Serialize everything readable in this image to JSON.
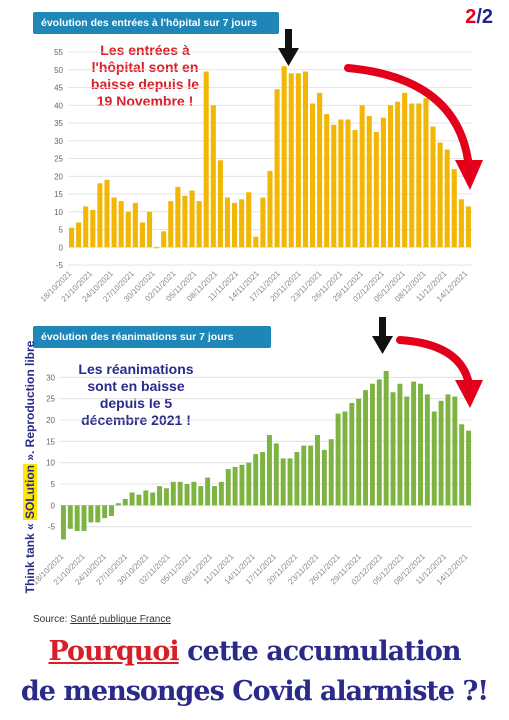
{
  "page_number": {
    "current": "2",
    "separator": "/",
    "total": "2"
  },
  "colors": {
    "header_bg": "#1f86b8",
    "bar1": "#f2b705",
    "bar2": "#7cb342",
    "arrow_red": "#e3001b",
    "arrow_black": "#111111",
    "text_red": "#d61f26",
    "text_blue": "#2a2a8a",
    "grid": "#dcdcdc"
  },
  "icons": [
    "down-arrow-icon",
    "curved-arrow-icon"
  ],
  "side_text": {
    "part1": "Think tank « ",
    "highlight": "SOLution",
    "part2": " ».  Reproduction libre"
  },
  "source": {
    "label": "Source: ",
    "link": "Santé publique France"
  },
  "bottom_text": {
    "line1_em": "Pourquoi",
    "line1_rest": " cette accumulation",
    "line2": "de mensonges Covid alarmiste ?!"
  },
  "chart_data": [
    {
      "type": "bar",
      "title": "évolution des entrées à l'hôpital sur 7 jours",
      "annotation": [
        "Les entrées à",
        "l'hôpital sont en",
        "baisse depuis le",
        "19 Novembre !"
      ],
      "ylim": [
        -5,
        55
      ],
      "yticks": [
        -5,
        0,
        5,
        10,
        15,
        20,
        25,
        30,
        35,
        40,
        45,
        50,
        55
      ],
      "grid": true,
      "xtick_labels": [
        "18/10/2021",
        "21/10/2021",
        "24/10/2021",
        "27/10/2021",
        "30/10/2021",
        "02/11/2021",
        "05/11/2021",
        "08/11/2021",
        "11/11/2021",
        "14/11/2021",
        "17/11/2021",
        "20/11/2021",
        "23/11/2021",
        "26/11/2021",
        "29/11/2021",
        "02/12/2021",
        "05/12/2021",
        "08/12/2021",
        "11/12/2021",
        "14/12/2021"
      ],
      "values": [
        5.5,
        7,
        11.5,
        10.5,
        18,
        19,
        14,
        13,
        10,
        12.5,
        7,
        10,
        -0.3,
        4.5,
        13,
        17,
        14.5,
        16,
        13,
        49.5,
        40,
        24.5,
        14,
        12.5,
        13.5,
        15.5,
        3,
        14,
        21.5,
        44.5,
        51,
        49,
        49,
        49.5,
        40.5,
        43.5,
        37.5,
        34.5,
        36,
        36,
        33,
        40,
        37,
        32.5,
        36.5,
        40,
        41,
        43.5,
        40.5,
        40.5,
        42,
        34,
        29.5,
        27.5,
        22,
        13.5,
        11.5
      ]
    },
    {
      "type": "bar",
      "title": "évolution des réanimations sur 7 jours",
      "annotation": [
        "Les réanimations",
        "sont en baisse",
        "depuis le 5",
        "décembre 2021 !"
      ],
      "ylim": [
        -10,
        35
      ],
      "yticks": [
        -5,
        0,
        5,
        10,
        15,
        20,
        25,
        30
      ],
      "grid": true,
      "xtick_labels": [
        "18/10/2021",
        "21/10/2021",
        "24/10/2021",
        "27/10/2021",
        "30/10/2021",
        "02/11/2021",
        "05/11/2021",
        "08/11/2021",
        "11/11/2021",
        "14/11/2021",
        "17/11/2021",
        "20/11/2021",
        "23/11/2021",
        "26/11/2021",
        "29/11/2021",
        "02/12/2021",
        "05/12/2021",
        "08/12/2021",
        "11/12/2021",
        "14/12/2021"
      ],
      "values": [
        -8,
        -5.5,
        -6,
        -6,
        -4,
        -4,
        -3,
        -2.5,
        0.5,
        1.5,
        3,
        2.5,
        3.5,
        3,
        4.5,
        4,
        5.5,
        5.5,
        5,
        5.5,
        4.5,
        6.5,
        4.5,
        5.5,
        8.5,
        9,
        9.5,
        10,
        12,
        12.5,
        16.5,
        14.5,
        11,
        11,
        12.5,
        14,
        14,
        16.5,
        13,
        15.5,
        21.5,
        22,
        24,
        25,
        27,
        28.5,
        29.5,
        31.5,
        26.5,
        28.5,
        25.5,
        29,
        28.5,
        26,
        22,
        24.5,
        26,
        25.5,
        19,
        17.5
      ]
    }
  ]
}
